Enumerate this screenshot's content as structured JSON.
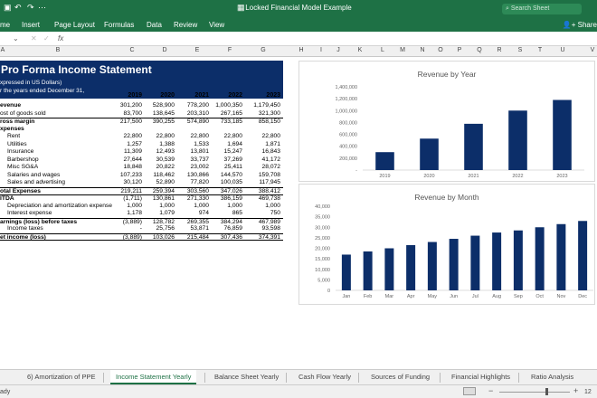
{
  "window": {
    "title": "Locked Financial Model Example",
    "search_placeholder": "Search Sheet"
  },
  "ribbon": {
    "tabs": [
      "me",
      "Insert",
      "Page Layout",
      "Formulas",
      "Data",
      "Review",
      "View"
    ],
    "share": "Share"
  },
  "formula_bar": {
    "cell_ref": "",
    "fx": "fx"
  },
  "columns": [
    "A",
    "B",
    "C",
    "D",
    "E",
    "F",
    "G",
    "H",
    "I",
    "J",
    "K",
    "L",
    "M",
    "N",
    "O",
    "P",
    "Q",
    "R",
    "S",
    "T",
    "U",
    "V"
  ],
  "statement": {
    "title": "Pro Forma Income Statement",
    "subtitle1": "xpressed in US Dollars)",
    "subtitle2": "r the years ended December 31,",
    "years": [
      "2019",
      "2020",
      "2021",
      "2022",
      "2023"
    ],
    "rows": [
      {
        "label": "evenue",
        "values": [
          "301,200",
          "528,900",
          "778,200",
          "1,000,350",
          "1,179,450"
        ]
      },
      {
        "label": "ost of goods sold",
        "values": [
          "83,700",
          "138,645",
          "203,310",
          "267,165",
          "321,300"
        ]
      },
      {
        "label": "ross margin",
        "values": [
          "217,500",
          "390,255",
          "574,890",
          "733,185",
          "858,150"
        ]
      },
      {
        "label": "xpenses",
        "values": [
          "",
          "",
          "",
          "",
          ""
        ]
      },
      {
        "label": "Rent",
        "values": [
          "22,800",
          "22,800",
          "22,800",
          "22,800",
          "22,800"
        ]
      },
      {
        "label": "Utilities",
        "values": [
          "1,257",
          "1,388",
          "1,533",
          "1,694",
          "1,871"
        ]
      },
      {
        "label": "Insurance",
        "values": [
          "11,309",
          "12,493",
          "13,801",
          "15,247",
          "16,843"
        ]
      },
      {
        "label": "Barbershop",
        "values": [
          "27,644",
          "30,539",
          "33,737",
          "37,269",
          "41,172"
        ]
      },
      {
        "label": "Misc SG&A",
        "values": [
          "18,848",
          "20,822",
          "23,002",
          "25,411",
          "28,072"
        ]
      },
      {
        "label": "Salaries and wages",
        "values": [
          "107,233",
          "118,462",
          "130,866",
          "144,570",
          "159,708"
        ]
      },
      {
        "label": "Sales and advertising",
        "values": [
          "30,120",
          "52,890",
          "77,820",
          "100,035",
          "117,945"
        ]
      },
      {
        "label": "otal Expenses",
        "values": [
          "219,211",
          "259,394",
          "303,560",
          "347,026",
          "388,412"
        ]
      },
      {
        "label": "ITDA",
        "values": [
          "(1,711)",
          "130,861",
          "271,330",
          "386,159",
          "469,738"
        ]
      },
      {
        "label": "Depreciation and amortization expense",
        "values": [
          "1,000",
          "1,000",
          "1,000",
          "1,000",
          "1,000"
        ]
      },
      {
        "label": "Interest expense",
        "values": [
          "1,178",
          "1,079",
          "974",
          "865",
          "750"
        ]
      },
      {
        "label": "arnings (loss) before taxes",
        "values": [
          "(3,889)",
          "128,782",
          "269,355",
          "384,294",
          "467,989"
        ]
      },
      {
        "label": "Income taxes",
        "values": [
          "-",
          "25,756",
          "53,871",
          "76,859",
          "93,598"
        ]
      },
      {
        "label": "et income (loss)",
        "values": [
          "(3,889)",
          "103,026",
          "215,484",
          "307,436",
          "374,391"
        ]
      }
    ]
  },
  "chart_data": [
    {
      "type": "bar",
      "title": "Revenue by Year",
      "categories": [
        "2019",
        "2020",
        "2021",
        "2022",
        "2023"
      ],
      "values": [
        301200,
        528900,
        778200,
        1000350,
        1179450
      ],
      "ylim": [
        0,
        1400000
      ],
      "y_ticks": [
        "-",
        "200,000",
        "400,000",
        "600,000",
        "800,000",
        "1,000,000",
        "1,200,000",
        "1,400,000"
      ],
      "color": "#0c2e69"
    },
    {
      "type": "bar",
      "title": "Revenue by Month",
      "categories": [
        "Jan",
        "Feb",
        "Mar",
        "Apr",
        "May",
        "Jun",
        "Jul",
        "Aug",
        "Sep",
        "Oct",
        "Nov",
        "Dec"
      ],
      "values": [
        17000,
        18500,
        20000,
        21500,
        23000,
        24500,
        26000,
        27500,
        28500,
        30000,
        31500,
        33000
      ],
      "ylim": [
        0,
        40000
      ],
      "y_ticks": [
        "0",
        "5,000",
        "10,000",
        "15,000",
        "20,000",
        "25,000",
        "30,000",
        "35,000",
        "40,000"
      ],
      "color": "#0c2e69"
    }
  ],
  "sheet_tabs": [
    "6) Amortization of PPE",
    "Income Statement Yearly",
    "Balance Sheet Yearly",
    "Cash Flow Yearly",
    "Sources of Funding",
    "Financial Highlights",
    "Ratio Analysis"
  ],
  "active_tab": "Income Statement Yearly",
  "status": {
    "left": "ady",
    "zoom": "12"
  }
}
